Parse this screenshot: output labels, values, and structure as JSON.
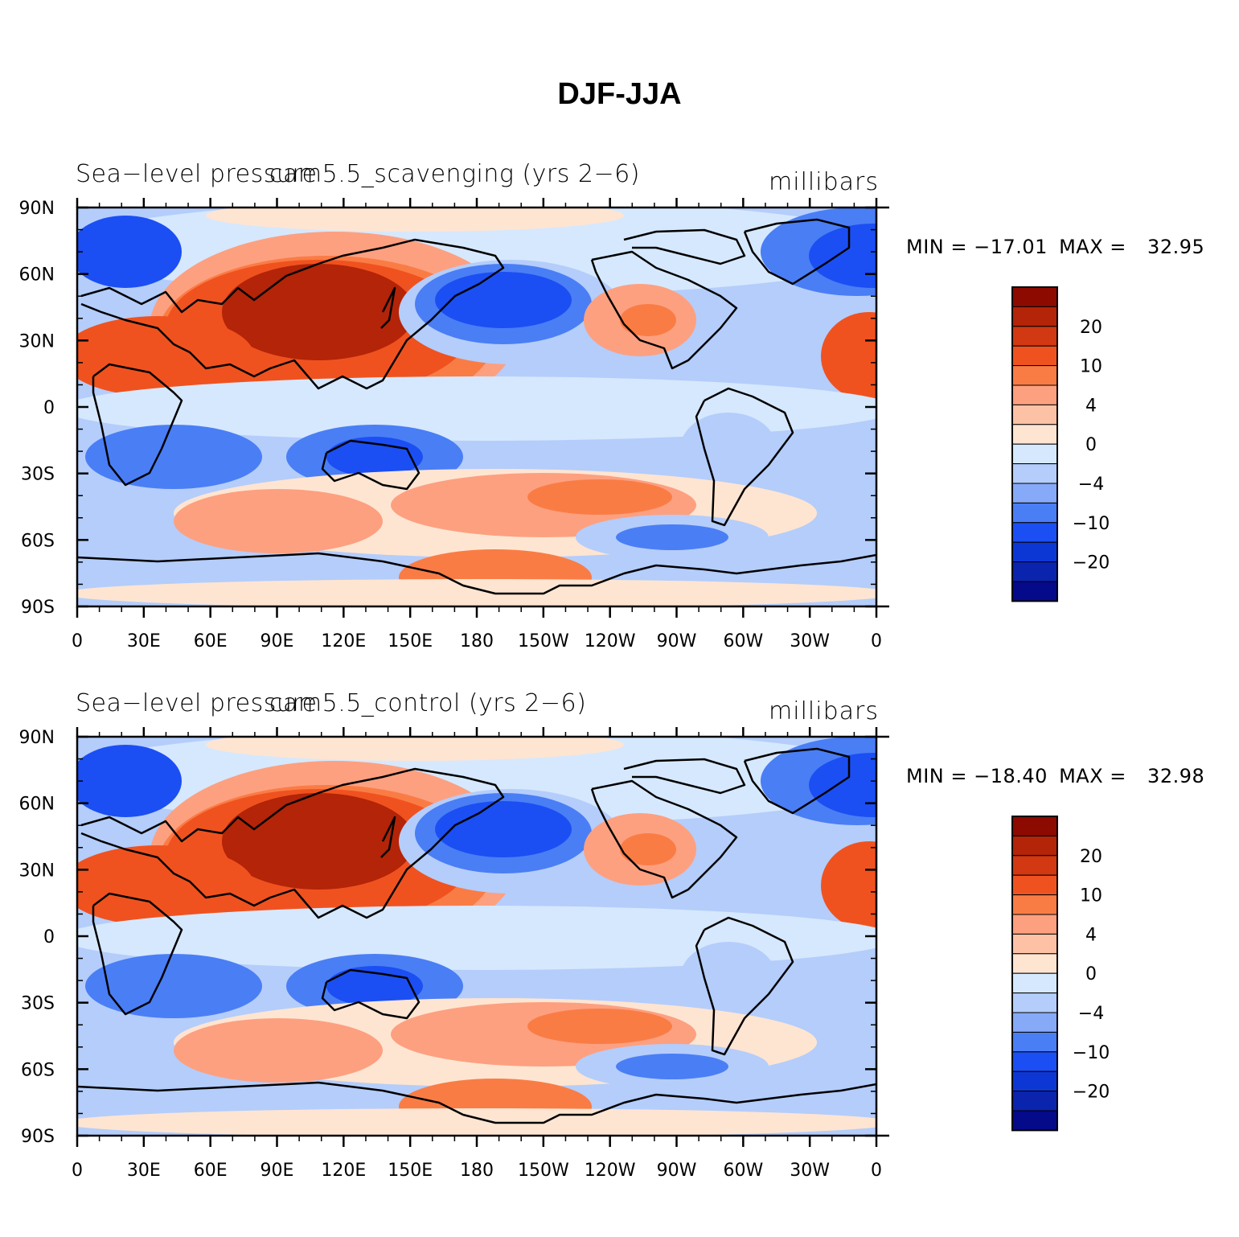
{
  "title": "DJF-JJA",
  "panels": [
    {
      "left_title": "Sea−level pressure",
      "center_title": "cam5.5_scavenging (yrs 2−6)",
      "units": "millibars",
      "min_label": "MIN =",
      "min_value": "−17.01",
      "max_label": "MAX =",
      "max_value": "32.95"
    },
    {
      "left_title": "Sea−level pressure",
      "center_title": "cam5.5_control (yrs 2−6)",
      "units": "millibars",
      "min_label": "MIN =",
      "min_value": "−18.40",
      "max_label": "MAX =",
      "max_value": "32.98"
    }
  ],
  "lat_labels": [
    "90N",
    "60N",
    "30N",
    "0",
    "30S",
    "60S",
    "90S"
  ],
  "lon_labels": [
    "0",
    "30E",
    "60E",
    "90E",
    "120E",
    "150E",
    "180",
    "150W",
    "120W",
    "90W",
    "60W",
    "30W",
    "0"
  ],
  "colorbar": {
    "labels": [
      "20",
      "10",
      "4",
      "0",
      "−4",
      "−10",
      "−20"
    ],
    "colors": [
      "#8c0a00",
      "#b32408",
      "#d23812",
      "#f0521f",
      "#fa7c45",
      "#fda080",
      "#fdc2a6",
      "#fee5d2",
      "#d6e8fd",
      "#b4cdfb",
      "#86aaf8",
      "#4a7ef5",
      "#1b4ff3",
      "#0d37d4",
      "#0a24ae",
      "#050a8a"
    ]
  },
  "palette": {
    "deep_red": "#b32408",
    "red": "#f0521f",
    "orange": "#fa7c45",
    "salmon": "#fda080",
    "peach": "#fee5d2",
    "pale_blue": "#d6e8fd",
    "light_blue": "#b4cdfb",
    "mid_blue": "#4a7ef5",
    "blue": "#1b4ff3",
    "coast": "#000000"
  }
}
